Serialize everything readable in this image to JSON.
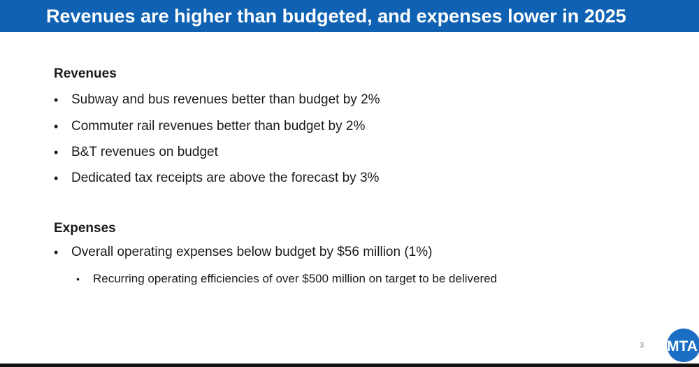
{
  "slide": {
    "title": "Revenues are higher than budgeted, and expenses lower in 2025",
    "page_number": "3",
    "colors": {
      "title_bar": "#0f62b3",
      "logo": "#1a6fc4"
    }
  },
  "revenues": {
    "heading": "Revenues",
    "bullets": [
      "Subway and bus revenues better than budget by 2%",
      "Commuter rail revenues better than budget by 2%",
      "B&T revenues on budget",
      "Dedicated tax receipts are above the forecast by 3%"
    ]
  },
  "expenses": {
    "heading": "Expenses",
    "bullets": [
      "Overall operating expenses below budget by $56 million (1%)"
    ],
    "sub_bullets": [
      "Recurring operating efficiencies of over $500 million on target to be delivered"
    ]
  },
  "logo": {
    "text": "MTA",
    "icon": "mta-logo-icon"
  },
  "bullet_symbol": "•"
}
